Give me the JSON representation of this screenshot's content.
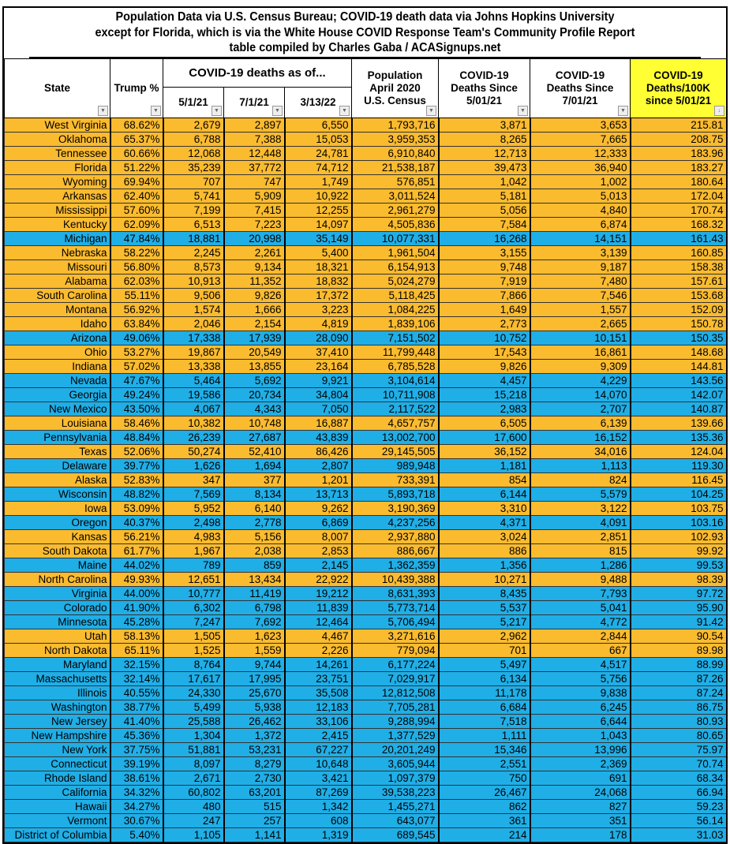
{
  "title_lines": [
    "Population Data via U.S. Census Bureau; COVID-19 death data via Johns Hopkins University",
    "except for Florida, which is via the White House COVID Response Team's Community Profile Report",
    "table compiled by Charles Gaba / ACASignups.net"
  ],
  "headers": {
    "state": "State",
    "trump": "Trump %",
    "deaths_group": "COVID-19 deaths as of...",
    "d1": "5/1/21",
    "d2": "7/1/21",
    "d3": "3/13/22",
    "pop_1": "Population",
    "pop_2": "April 2020",
    "pop_3": "U.S. Census",
    "since5_1": "COVID-19",
    "since5_2": "Deaths Since",
    "since5_3": "5/01/21",
    "since7_1": "COVID-19",
    "since7_2": "Deaths Since",
    "since7_3": "7/01/21",
    "rate_1": "COVID-19",
    "rate_2": "Deaths/100K",
    "rate_3": "since 5/01/21"
  },
  "colors": {
    "R": "#fbbb2f",
    "D": "#20aee6",
    "highlight": "#ffff33"
  },
  "rows": [
    [
      "R",
      "West Virginia",
      "68.62%",
      "2,679",
      "2,897",
      "6,550",
      "1,793,716",
      "3,871",
      "3,653",
      "215.81"
    ],
    [
      "R",
      "Oklahoma",
      "65.37%",
      "6,788",
      "7,388",
      "15,053",
      "3,959,353",
      "8,265",
      "7,665",
      "208.75"
    ],
    [
      "R",
      "Tennessee",
      "60.66%",
      "12,068",
      "12,448",
      "24,781",
      "6,910,840",
      "12,713",
      "12,333",
      "183.96"
    ],
    [
      "R",
      "Florida",
      "51.22%",
      "35,239",
      "37,772",
      "74,712",
      "21,538,187",
      "39,473",
      "36,940",
      "183.27"
    ],
    [
      "R",
      "Wyoming",
      "69.94%",
      "707",
      "747",
      "1,749",
      "576,851",
      "1,042",
      "1,002",
      "180.64"
    ],
    [
      "R",
      "Arkansas",
      "62.40%",
      "5,741",
      "5,909",
      "10,922",
      "3,011,524",
      "5,181",
      "5,013",
      "172.04"
    ],
    [
      "R",
      "Mississippi",
      "57.60%",
      "7,199",
      "7,415",
      "12,255",
      "2,961,279",
      "5,056",
      "4,840",
      "170.74"
    ],
    [
      "R",
      "Kentucky",
      "62.09%",
      "6,513",
      "7,223",
      "14,097",
      "4,505,836",
      "7,584",
      "6,874",
      "168.32"
    ],
    [
      "D",
      "Michigan",
      "47.84%",
      "18,881",
      "20,998",
      "35,149",
      "10,077,331",
      "16,268",
      "14,151",
      "161.43"
    ],
    [
      "R",
      "Nebraska",
      "58.22%",
      "2,245",
      "2,261",
      "5,400",
      "1,961,504",
      "3,155",
      "3,139",
      "160.85"
    ],
    [
      "R",
      "Missouri",
      "56.80%",
      "8,573",
      "9,134",
      "18,321",
      "6,154,913",
      "9,748",
      "9,187",
      "158.38"
    ],
    [
      "R",
      "Alabama",
      "62.03%",
      "10,913",
      "11,352",
      "18,832",
      "5,024,279",
      "7,919",
      "7,480",
      "157.61"
    ],
    [
      "R",
      "South Carolina",
      "55.11%",
      "9,506",
      "9,826",
      "17,372",
      "5,118,425",
      "7,866",
      "7,546",
      "153.68"
    ],
    [
      "R",
      "Montana",
      "56.92%",
      "1,574",
      "1,666",
      "3,223",
      "1,084,225",
      "1,649",
      "1,557",
      "152.09"
    ],
    [
      "R",
      "Idaho",
      "63.84%",
      "2,046",
      "2,154",
      "4,819",
      "1,839,106",
      "2,773",
      "2,665",
      "150.78"
    ],
    [
      "D",
      "Arizona",
      "49.06%",
      "17,338",
      "17,939",
      "28,090",
      "7,151,502",
      "10,752",
      "10,151",
      "150.35"
    ],
    [
      "R",
      "Ohio",
      "53.27%",
      "19,867",
      "20,549",
      "37,410",
      "11,799,448",
      "17,543",
      "16,861",
      "148.68"
    ],
    [
      "R",
      "Indiana",
      "57.02%",
      "13,338",
      "13,855",
      "23,164",
      "6,785,528",
      "9,826",
      "9,309",
      "144.81"
    ],
    [
      "D",
      "Nevada",
      "47.67%",
      "5,464",
      "5,692",
      "9,921",
      "3,104,614",
      "4,457",
      "4,229",
      "143.56"
    ],
    [
      "D",
      "Georgia",
      "49.24%",
      "19,586",
      "20,734",
      "34,804",
      "10,711,908",
      "15,218",
      "14,070",
      "142.07"
    ],
    [
      "D",
      "New Mexico",
      "43.50%",
      "4,067",
      "4,343",
      "7,050",
      "2,117,522",
      "2,983",
      "2,707",
      "140.87"
    ],
    [
      "R",
      "Louisiana",
      "58.46%",
      "10,382",
      "10,748",
      "16,887",
      "4,657,757",
      "6,505",
      "6,139",
      "139.66"
    ],
    [
      "D",
      "Pennsylvania",
      "48.84%",
      "26,239",
      "27,687",
      "43,839",
      "13,002,700",
      "17,600",
      "16,152",
      "135.36"
    ],
    [
      "R",
      "Texas",
      "52.06%",
      "50,274",
      "52,410",
      "86,426",
      "29,145,505",
      "36,152",
      "34,016",
      "124.04"
    ],
    [
      "D",
      "Delaware",
      "39.77%",
      "1,626",
      "1,694",
      "2,807",
      "989,948",
      "1,181",
      "1,113",
      "119.30"
    ],
    [
      "R",
      "Alaska",
      "52.83%",
      "347",
      "377",
      "1,201",
      "733,391",
      "854",
      "824",
      "116.45"
    ],
    [
      "D",
      "Wisconsin",
      "48.82%",
      "7,569",
      "8,134",
      "13,713",
      "5,893,718",
      "6,144",
      "5,579",
      "104.25"
    ],
    [
      "R",
      "Iowa",
      "53.09%",
      "5,952",
      "6,140",
      "9,262",
      "3,190,369",
      "3,310",
      "3,122",
      "103.75"
    ],
    [
      "D",
      "Oregon",
      "40.37%",
      "2,498",
      "2,778",
      "6,869",
      "4,237,256",
      "4,371",
      "4,091",
      "103.16"
    ],
    [
      "R",
      "Kansas",
      "56.21%",
      "4,983",
      "5,156",
      "8,007",
      "2,937,880",
      "3,024",
      "2,851",
      "102.93"
    ],
    [
      "R",
      "South Dakota",
      "61.77%",
      "1,967",
      "2,038",
      "2,853",
      "886,667",
      "886",
      "815",
      "99.92"
    ],
    [
      "D",
      "Maine",
      "44.02%",
      "789",
      "859",
      "2,145",
      "1,362,359",
      "1,356",
      "1,286",
      "99.53"
    ],
    [
      "R",
      "North Carolina",
      "49.93%",
      "12,651",
      "13,434",
      "22,922",
      "10,439,388",
      "10,271",
      "9,488",
      "98.39"
    ],
    [
      "D",
      "Virginia",
      "44.00%",
      "10,777",
      "11,419",
      "19,212",
      "8,631,393",
      "8,435",
      "7,793",
      "97.72"
    ],
    [
      "D",
      "Colorado",
      "41.90%",
      "6,302",
      "6,798",
      "11,839",
      "5,773,714",
      "5,537",
      "5,041",
      "95.90"
    ],
    [
      "D",
      "Minnesota",
      "45.28%",
      "7,247",
      "7,692",
      "12,464",
      "5,706,494",
      "5,217",
      "4,772",
      "91.42"
    ],
    [
      "R",
      "Utah",
      "58.13%",
      "1,505",
      "1,623",
      "4,467",
      "3,271,616",
      "2,962",
      "2,844",
      "90.54"
    ],
    [
      "R",
      "North Dakota",
      "65.11%",
      "1,525",
      "1,559",
      "2,226",
      "779,094",
      "701",
      "667",
      "89.98"
    ],
    [
      "D",
      "Maryland",
      "32.15%",
      "8,764",
      "9,744",
      "14,261",
      "6,177,224",
      "5,497",
      "4,517",
      "88.99"
    ],
    [
      "D",
      "Massachusetts",
      "32.14%",
      "17,617",
      "17,995",
      "23,751",
      "7,029,917",
      "6,134",
      "5,756",
      "87.26"
    ],
    [
      "D",
      "Illinois",
      "40.55%",
      "24,330",
      "25,670",
      "35,508",
      "12,812,508",
      "11,178",
      "9,838",
      "87.24"
    ],
    [
      "D",
      "Washington",
      "38.77%",
      "5,499",
      "5,938",
      "12,183",
      "7,705,281",
      "6,684",
      "6,245",
      "86.75"
    ],
    [
      "D",
      "New Jersey",
      "41.40%",
      "25,588",
      "26,462",
      "33,106",
      "9,288,994",
      "7,518",
      "6,644",
      "80.93"
    ],
    [
      "D",
      "New Hampshire",
      "45.36%",
      "1,304",
      "1,372",
      "2,415",
      "1,377,529",
      "1,111",
      "1,043",
      "80.65"
    ],
    [
      "D",
      "New York",
      "37.75%",
      "51,881",
      "53,231",
      "67,227",
      "20,201,249",
      "15,346",
      "13,996",
      "75.97"
    ],
    [
      "D",
      "Connecticut",
      "39.19%",
      "8,097",
      "8,279",
      "10,648",
      "3,605,944",
      "2,551",
      "2,369",
      "70.74"
    ],
    [
      "D",
      "Rhode Island",
      "38.61%",
      "2,671",
      "2,730",
      "3,421",
      "1,097,379",
      "750",
      "691",
      "68.34"
    ],
    [
      "D",
      "California",
      "34.32%",
      "60,802",
      "63,201",
      "87,269",
      "39,538,223",
      "26,467",
      "24,068",
      "66.94"
    ],
    [
      "D",
      "Hawaii",
      "34.27%",
      "480",
      "515",
      "1,342",
      "1,455,271",
      "862",
      "827",
      "59.23"
    ],
    [
      "D",
      "Vermont",
      "30.67%",
      "247",
      "257",
      "608",
      "643,077",
      "361",
      "351",
      "56.14"
    ],
    [
      "D",
      "District of Columbia",
      "5.40%",
      "1,105",
      "1,141",
      "1,319",
      "689,545",
      "214",
      "178",
      "31.03"
    ]
  ]
}
